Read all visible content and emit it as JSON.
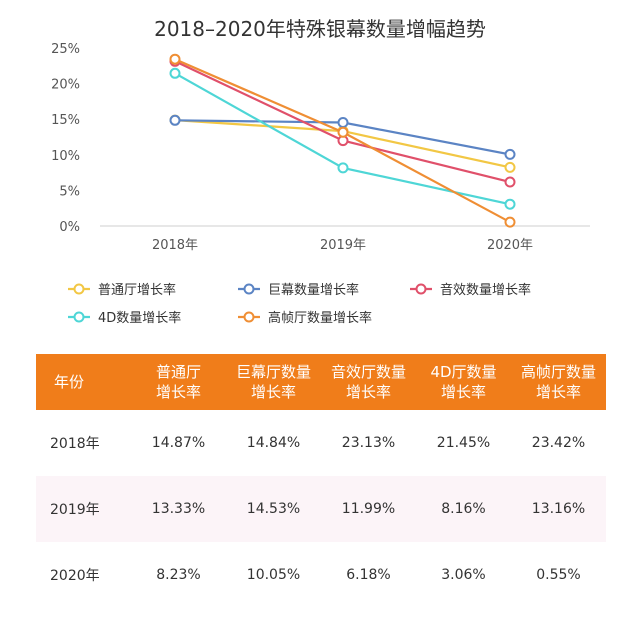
{
  "chart_data": {
    "type": "line",
    "title": "2018–2020年特殊银幕数量增幅趋势",
    "categories": [
      "2018年",
      "2019年",
      "2020年"
    ],
    "y_ticks": [
      "0%",
      "5%",
      "10%",
      "15%",
      "20%",
      "25%"
    ],
    "ylim": [
      0,
      25
    ],
    "grid": false,
    "legend_position": "bottom",
    "series": [
      {
        "name": "普通厅增长率",
        "color": "#f2c744",
        "values": [
          14.87,
          13.33,
          8.23
        ]
      },
      {
        "name": "巨幕数量增长率",
        "color": "#5b84c4",
        "values": [
          14.84,
          14.53,
          10.05
        ]
      },
      {
        "name": "音效数量增长率",
        "color": "#e0506a",
        "values": [
          23.13,
          11.99,
          6.18
        ]
      },
      {
        "name": "4D数量增长率",
        "color": "#4ed6d6",
        "values": [
          21.45,
          8.16,
          3.06
        ]
      },
      {
        "name": "高帧厅数量增长率",
        "color": "#ef8e34",
        "values": [
          23.42,
          13.16,
          0.55
        ]
      }
    ]
  },
  "table": {
    "headers": [
      [
        "年份"
      ],
      [
        "普通厅",
        "增长率"
      ],
      [
        "巨幕厅数量",
        "增长率"
      ],
      [
        "音效厅数量",
        "增长率"
      ],
      [
        "4D厅数量",
        "增长率"
      ],
      [
        "高帧厅数量",
        "增长率"
      ]
    ],
    "rows": [
      [
        "2018年",
        "14.87%",
        "14.84%",
        "23.13%",
        "21.45%",
        "23.42%"
      ],
      [
        "2019年",
        "13.33%",
        "14.53%",
        "11.99%",
        "8.16%",
        "13.16%"
      ],
      [
        "2020年",
        "8.23%",
        "10.05%",
        "6.18%",
        "3.06%",
        "0.55%"
      ]
    ]
  },
  "colors": {
    "header_bg": "#f07d1a",
    "alt_row_bg": "#fcf4f8"
  }
}
